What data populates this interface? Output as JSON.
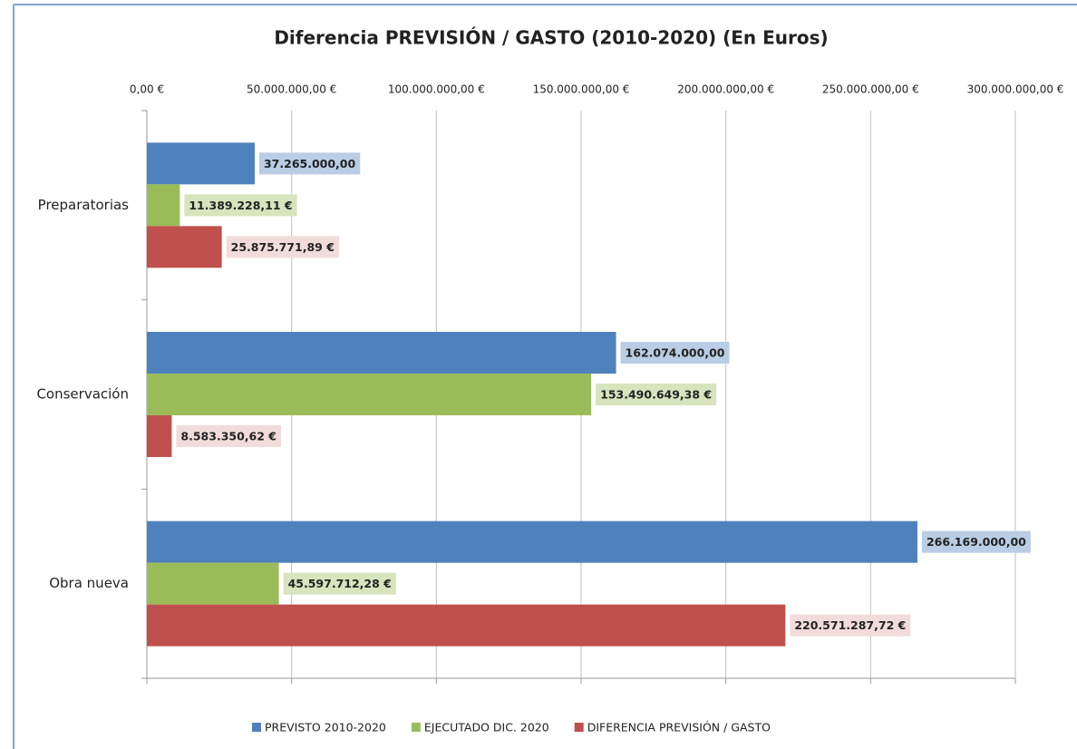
{
  "chart_data": {
    "type": "barh",
    "title": "Diferencia PREVISIÓN / GASTO (2010-2020)  (En Euros)",
    "categories": [
      "Preparatorias",
      "Conservación",
      "Obra nueva"
    ],
    "series": [
      {
        "name": "PREVISTO 2010-2020",
        "color": "#4f81bd",
        "label_bg": "#b9cde5",
        "values": [
          37265000,
          162074000,
          266169000
        ],
        "value_labels": [
          "37.265.000,00",
          "162.074.000,00",
          "266.169.000,00"
        ]
      },
      {
        "name": "EJECUTADO DIC. 2020",
        "color": "#9bbb59",
        "label_bg": "#d7e4bd",
        "values": [
          11389228.11,
          153490649.38,
          45597712.28
        ],
        "value_labels": [
          "11.389.228,11 €",
          "153.490.649,38 €",
          "45.597.712,28 €"
        ]
      },
      {
        "name": "DIFERENCIA PREVISIÓN / GASTO",
        "color": "#c0504d",
        "label_bg": "#f2dcdb",
        "values": [
          25875771.89,
          8583350.62,
          220571287.72
        ],
        "value_labels": [
          "25.875.771,89 €",
          "8.583.350,62 €",
          "220.571.287,72 €"
        ]
      }
    ],
    "xlim": [
      0,
      300000000
    ],
    "xticks": [
      {
        "value": 0,
        "label": "0,00 €"
      },
      {
        "value": 50000000,
        "label": "50.000.000,00 €"
      },
      {
        "value": 100000000,
        "label": "100.000.000,00 €"
      },
      {
        "value": 150000000,
        "label": "150.000.000,00 €"
      },
      {
        "value": 200000000,
        "label": "200.000.000,00 €"
      },
      {
        "value": 250000000,
        "label": "250.000.000,00 €"
      },
      {
        "value": 300000000,
        "label": "300.000.000,00 €"
      }
    ],
    "grid": true,
    "legend": "bottom"
  }
}
